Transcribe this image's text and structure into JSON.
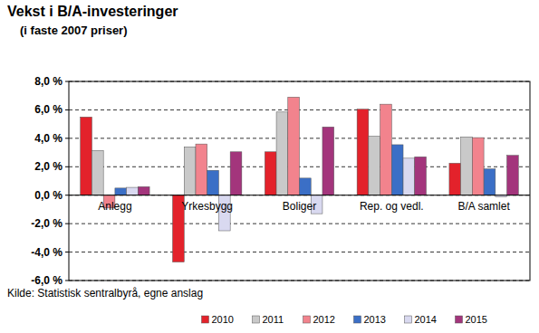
{
  "chart_data": {
    "type": "bar",
    "title": "Vekst i B/A-investeringer",
    "subtitle": "(i faste 2007 priser)",
    "annotation": "Kilde: Statistisk sentralbyrå, egne anslag",
    "categories": [
      "Anlegg",
      "Yrkesbygg",
      "Boliger",
      "Rep. og vedl.",
      "B/A samlet"
    ],
    "series": [
      {
        "name": "2010",
        "color": "#e3222b",
        "values": [
          5.5,
          -4.7,
          3.05,
          6.05,
          2.25
        ]
      },
      {
        "name": "2011",
        "color": "#c9c9c9",
        "values": [
          3.15,
          3.4,
          5.85,
          4.15,
          4.1
        ]
      },
      {
        "name": "2012",
        "color": "#f2838d",
        "values": [
          -0.9,
          3.6,
          6.9,
          6.4,
          4.05
        ]
      },
      {
        "name": "2013",
        "color": "#3b6fc6",
        "values": [
          0.5,
          1.75,
          1.2,
          3.55,
          1.85
        ]
      },
      {
        "name": "2014",
        "color": "#d9d9f0",
        "values": [
          0.55,
          -2.5,
          -1.3,
          2.6,
          -0.1
        ]
      },
      {
        "name": "2015",
        "color": "#a3357c",
        "values": [
          0.6,
          3.05,
          4.8,
          2.7,
          2.8
        ]
      }
    ],
    "ylim": [
      -6,
      8
    ],
    "yticks": [
      {
        "value": -6,
        "label": "-6,0 %"
      },
      {
        "value": -4,
        "label": "-4,0 %"
      },
      {
        "value": -2,
        "label": "-2,0 %"
      },
      {
        "value": 0,
        "label": "0,0 %"
      },
      {
        "value": 2,
        "label": "2,0 %"
      },
      {
        "value": 4,
        "label": "4,0 %"
      },
      {
        "value": 6,
        "label": "6,0 %"
      },
      {
        "value": 8,
        "label": "8,0 %"
      }
    ],
    "grid": true,
    "legend": "bottom"
  }
}
